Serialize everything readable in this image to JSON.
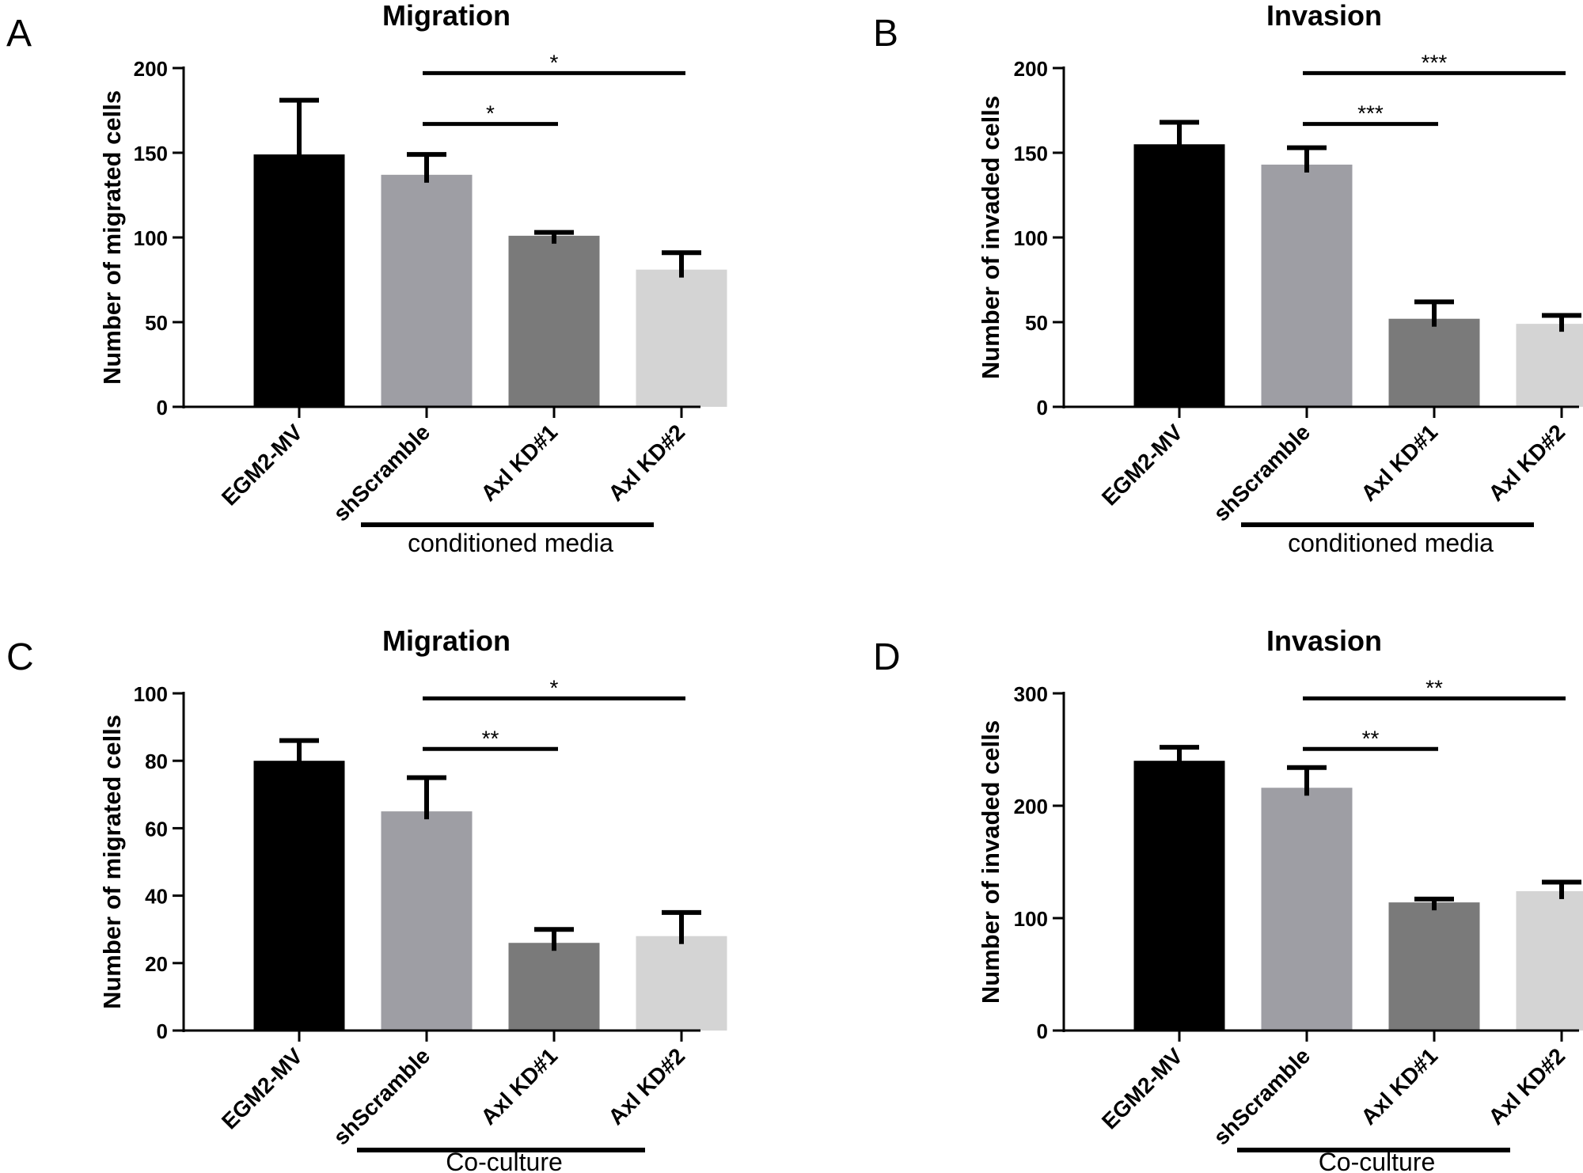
{
  "chart_data": [
    {
      "panel_letter": "A",
      "type": "bar",
      "title": "Migration",
      "ylabel": "Number of migrated cells",
      "categories": [
        "EGM2-MV",
        "shScramble",
        "Axl KD#1",
        "Axl KD#2"
      ],
      "values": [
        149,
        137,
        101,
        81
      ],
      "errors": [
        32,
        12,
        2,
        10
      ],
      "bar_colors": [
        "#000000",
        "#9e9ea4",
        "#7a7a7a",
        "#d4d4d4"
      ],
      "ylim": [
        0,
        200
      ],
      "yticks": [
        "0",
        "50",
        "100",
        "150",
        "200"
      ],
      "significance": [
        {
          "from": 1,
          "to": 2,
          "label": "*"
        },
        {
          "from": 1,
          "to": 3,
          "label": "*"
        }
      ],
      "group_label": "conditioned media"
    },
    {
      "panel_letter": "B",
      "type": "bar",
      "title": "Invasion",
      "ylabel": "Number of invaded cells",
      "categories": [
        "EGM2-MV",
        "shScramble",
        "Axl KD#1",
        "Axl KD#2"
      ],
      "values": [
        155,
        143,
        52,
        49
      ],
      "errors": [
        13,
        10,
        10,
        5
      ],
      "bar_colors": [
        "#000000",
        "#9e9ea4",
        "#7a7a7a",
        "#d4d4d4"
      ],
      "ylim": [
        0,
        200
      ],
      "yticks": [
        "0",
        "50",
        "100",
        "150",
        "200"
      ],
      "significance": [
        {
          "from": 1,
          "to": 2,
          "label": "***"
        },
        {
          "from": 1,
          "to": 3,
          "label": "***"
        }
      ],
      "group_label": "conditioned media"
    },
    {
      "panel_letter": "C",
      "type": "bar",
      "title": "Migration",
      "ylabel": "Number of migrated cells",
      "categories": [
        "EGM2-MV",
        "shScramble",
        "Axl KD#1",
        "Axl KD#2"
      ],
      "values": [
        80,
        65,
        26,
        28
      ],
      "errors": [
        6,
        10,
        4,
        7
      ],
      "bar_colors": [
        "#000000",
        "#9e9ea4",
        "#7a7a7a",
        "#d4d4d4"
      ],
      "ylim": [
        0,
        100
      ],
      "yticks": [
        "0",
        "20",
        "40",
        "60",
        "80",
        "100"
      ],
      "significance": [
        {
          "from": 1,
          "to": 2,
          "label": "**"
        },
        {
          "from": 1,
          "to": 3,
          "label": "*"
        }
      ],
      "group_label": "Co-culture"
    },
    {
      "panel_letter": "D",
      "type": "bar",
      "title": "Invasion",
      "ylabel": "Number of invaded cells",
      "categories": [
        "EGM2-MV",
        "shScramble",
        "Axl KD#1",
        "Axl KD#2"
      ],
      "values": [
        240,
        216,
        114,
        124
      ],
      "errors": [
        12,
        18,
        3,
        8
      ],
      "bar_colors": [
        "#000000",
        "#9e9ea4",
        "#7a7a7a",
        "#d4d4d4"
      ],
      "ylim": [
        0,
        300
      ],
      "yticks": [
        "0",
        "100",
        "200",
        "300"
      ],
      "significance": [
        {
          "from": 1,
          "to": 2,
          "label": "**"
        },
        {
          "from": 1,
          "to": 3,
          "label": "**"
        }
      ],
      "group_label": "Co-culture"
    }
  ]
}
